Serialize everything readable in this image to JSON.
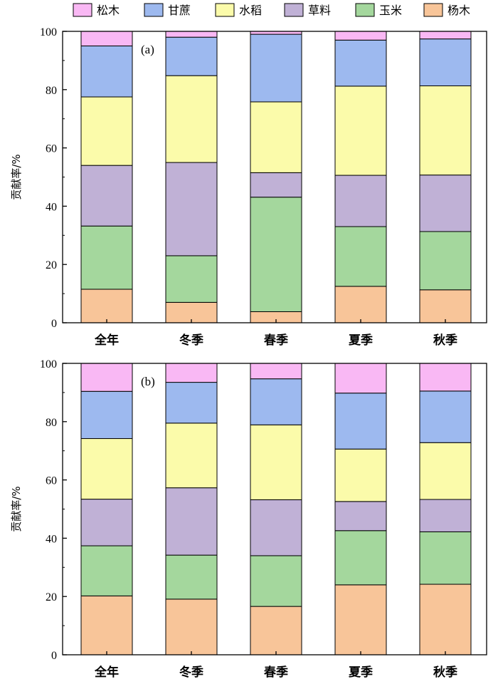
{
  "legend": [
    {
      "name": "松木",
      "color": "#F9B8F4"
    },
    {
      "name": "甘蔗",
      "color": "#9DB9EF"
    },
    {
      "name": "水稻",
      "color": "#FBFBAA"
    },
    {
      "name": "草料",
      "color": "#C0B1D6"
    },
    {
      "name": "玉米",
      "color": "#A4D79D"
    },
    {
      "name": "杨木",
      "color": "#F8C599"
    }
  ],
  "chart_data": [
    {
      "type": "bar",
      "stacked": true,
      "panel_label": "(a)",
      "title": "",
      "xlabel": "",
      "ylabel": "贡献率/%",
      "ylim": [
        0,
        100
      ],
      "yticks": [
        0,
        20,
        40,
        60,
        80,
        100
      ],
      "categories": [
        "全年",
        "冬季",
        "春季",
        "夏季",
        "秋季"
      ],
      "series": [
        {
          "name": "杨木",
          "color": "#F8C599",
          "values": [
            11.5,
            7.0,
            3.8,
            12.5,
            11.3
          ]
        },
        {
          "name": "玉米",
          "color": "#A4D79D",
          "values": [
            21.7,
            16.0,
            39.3,
            20.5,
            20.0
          ]
        },
        {
          "name": "草料",
          "color": "#C0B1D6",
          "values": [
            20.8,
            32.0,
            8.4,
            17.6,
            19.4
          ]
        },
        {
          "name": "水稻",
          "color": "#FBFBAA",
          "values": [
            23.5,
            29.8,
            24.3,
            30.6,
            30.6
          ]
        },
        {
          "name": "甘蔗",
          "color": "#9DB9EF",
          "values": [
            17.5,
            13.2,
            23.2,
            15.8,
            16.1
          ]
        },
        {
          "name": "松木",
          "color": "#F9B8F4",
          "values": [
            5.0,
            2.0,
            1.0,
            3.0,
            2.6
          ]
        }
      ]
    },
    {
      "type": "bar",
      "stacked": true,
      "panel_label": "(b)",
      "title": "",
      "xlabel": "",
      "ylabel": "贡献率/%",
      "ylim": [
        0,
        100
      ],
      "yticks": [
        0,
        20,
        40,
        60,
        80,
        100
      ],
      "categories": [
        "全年",
        "冬季",
        "春季",
        "夏季",
        "秋季"
      ],
      "series": [
        {
          "name": "杨木",
          "color": "#F8C599",
          "values": [
            20.2,
            19.1,
            16.6,
            24.0,
            24.2
          ]
        },
        {
          "name": "玉米",
          "color": "#A4D79D",
          "values": [
            17.2,
            15.1,
            17.4,
            18.6,
            18.0
          ]
        },
        {
          "name": "草料",
          "color": "#C0B1D6",
          "values": [
            16.0,
            23.1,
            19.2,
            10.0,
            11.1
          ]
        },
        {
          "name": "水稻",
          "color": "#FBFBAA",
          "values": [
            20.8,
            22.2,
            25.7,
            18.0,
            19.5
          ]
        },
        {
          "name": "甘蔗",
          "color": "#9DB9EF",
          "values": [
            16.2,
            14.0,
            15.8,
            19.2,
            17.7
          ]
        },
        {
          "name": "松木",
          "color": "#F9B8F4",
          "values": [
            9.6,
            6.5,
            5.3,
            10.2,
            9.5
          ]
        }
      ]
    }
  ]
}
